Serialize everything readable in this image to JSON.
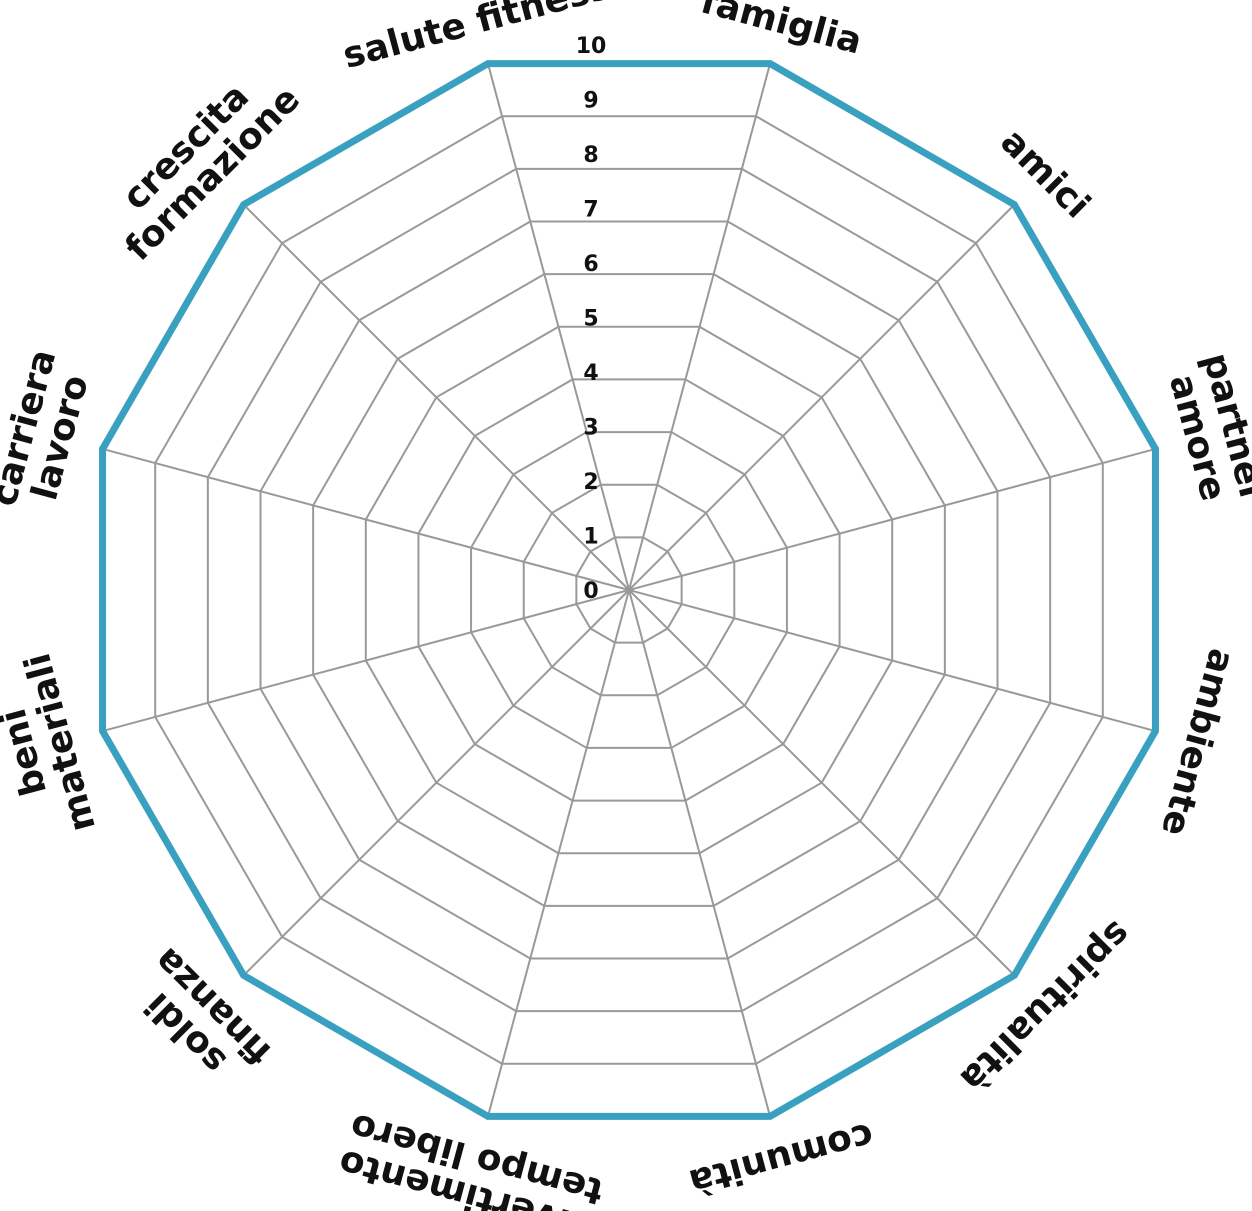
{
  "chart_data": {
    "type": "radar",
    "title": "",
    "categories": [
      [
        "famiglia"
      ],
      [
        "amici"
      ],
      [
        "partner",
        "amore"
      ],
      [
        "ambiente"
      ],
      [
        "spiritualità"
      ],
      [
        "comunità"
      ],
      [
        "divertimento",
        "tempo libero"
      ],
      [
        "soldi",
        "finanza"
      ],
      [
        "beni",
        "materiali"
      ],
      [
        "carriera",
        "lavoro"
      ],
      [
        "crescita",
        "formazione"
      ],
      [
        "salute fitness"
      ]
    ],
    "ticks": [
      "0",
      "1",
      "2",
      "3",
      "4",
      "5",
      "6",
      "7",
      "8",
      "9",
      "10"
    ],
    "range": [
      0,
      10
    ],
    "grid": true,
    "colors": {
      "grid": "#999999",
      "outline": "#3aa0c0",
      "text": "#111111"
    }
  }
}
